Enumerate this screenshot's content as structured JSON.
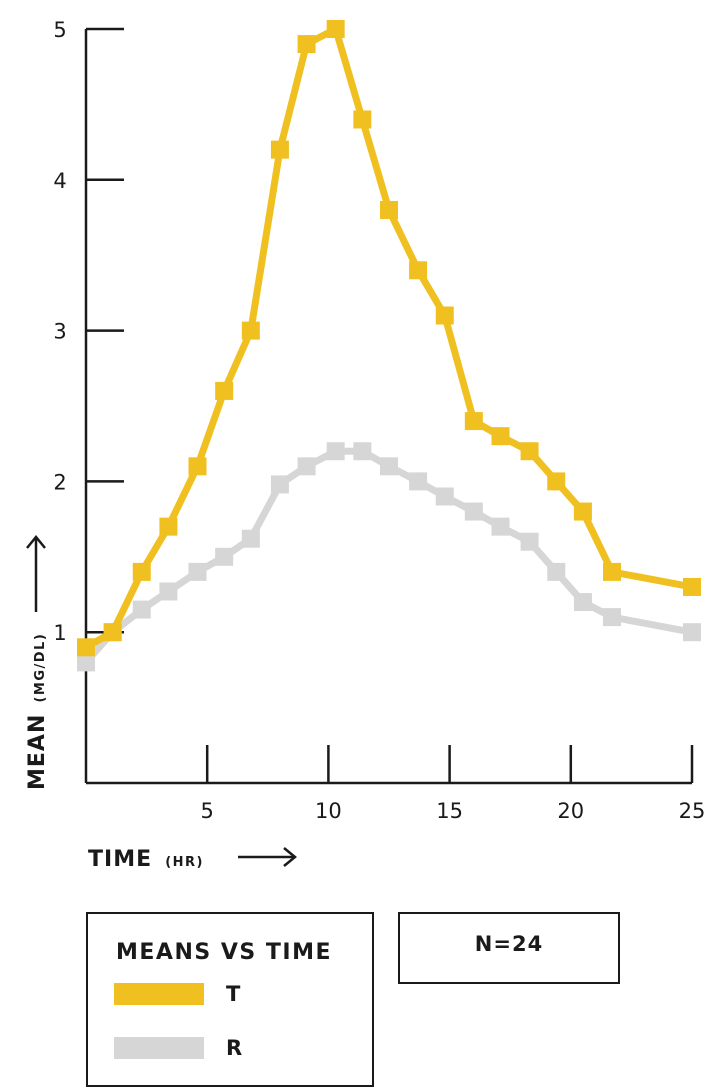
{
  "chart_data": {
    "type": "line",
    "xlabel": "TIME",
    "xlabel_unit": "(HR)",
    "ylabel": "MEAN",
    "ylabel_unit": "(MG/DL)",
    "xlim": [
      0,
      25
    ],
    "ylim": [
      0,
      5
    ],
    "xticks": [
      5,
      10,
      15,
      20,
      25
    ],
    "yticks": [
      1,
      2,
      3,
      4,
      5
    ],
    "grid": false,
    "legend_title": "MEANS VS TIME",
    "annotation": "N=24",
    "series": [
      {
        "name": "T",
        "color": "#f0c020",
        "x": [
          0,
          1.1,
          2.3,
          3.4,
          4.6,
          5.7,
          6.8,
          8.0,
          9.1,
          10.3,
          11.4,
          12.5,
          13.7,
          14.8,
          16.0,
          17.1,
          18.3,
          19.4,
          20.5,
          21.7,
          25
        ],
        "y": [
          0.9,
          1.0,
          1.4,
          1.7,
          2.1,
          2.6,
          3.0,
          4.2,
          4.9,
          5.0,
          4.4,
          3.8,
          3.4,
          3.1,
          2.4,
          2.3,
          2.2,
          2.0,
          1.8,
          1.4,
          1.3
        ]
      },
      {
        "name": "R",
        "color": "#d6d6d6",
        "x": [
          0,
          1.1,
          2.3,
          3.4,
          4.6,
          5.7,
          6.8,
          8.0,
          9.1,
          10.3,
          11.4,
          12.5,
          13.7,
          14.8,
          16.0,
          17.1,
          18.3,
          19.4,
          20.5,
          21.7,
          25
        ],
        "y": [
          0.8,
          1.0,
          1.15,
          1.27,
          1.4,
          1.5,
          1.62,
          1.98,
          2.1,
          2.2,
          2.2,
          2.1,
          2.0,
          1.9,
          1.8,
          1.7,
          1.6,
          1.4,
          1.2,
          1.1,
          1.0
        ]
      }
    ]
  }
}
